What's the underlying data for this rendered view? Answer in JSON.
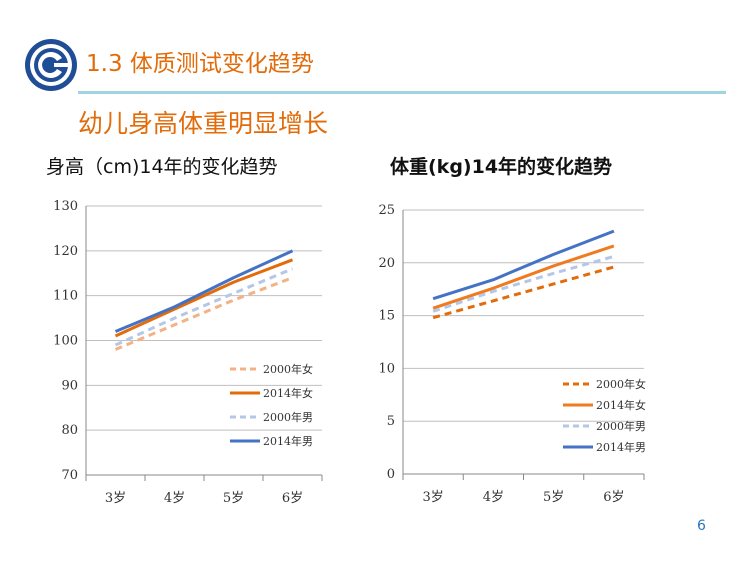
{
  "slide": {
    "title": "1.3 体质测试变化趋势",
    "subtitle": "幼儿身高体重明显增长",
    "page_number": "6",
    "accent_color": "#e26b0a",
    "rule_color": "#9fd4e0"
  },
  "chart_data": [
    {
      "type": "line",
      "title": "身高（cm)14年的变化趋势",
      "categories": [
        "3岁",
        "4岁",
        "5岁",
        "6岁"
      ],
      "ylim": [
        70,
        130
      ],
      "yticks": [
        "70",
        "80",
        "90",
        "100",
        "110",
        "120",
        "130"
      ],
      "grid": true,
      "legend_position": "bottom-right",
      "series": [
        {
          "name": "2000年女",
          "values": [
            98,
            103.5,
            109,
            114
          ],
          "color": "#f4b183",
          "style": "dashed"
        },
        {
          "name": "2014年女",
          "values": [
            101,
            107,
            113,
            118
          ],
          "color": "#e26b0a",
          "style": "solid"
        },
        {
          "name": "2000年男",
          "values": [
            99,
            105,
            110.5,
            116
          ],
          "color": "#b4c7e7",
          "style": "dashed"
        },
        {
          "name": "2014年男",
          "values": [
            102,
            107.5,
            114,
            120
          ],
          "color": "#4472c4",
          "style": "solid"
        }
      ]
    },
    {
      "type": "line",
      "title": "体重(kg)14年的变化趋势",
      "categories": [
        "3岁",
        "4岁",
        "5岁",
        "6岁"
      ],
      "ylim": [
        0,
        25
      ],
      "yticks": [
        "0",
        "5",
        "10",
        "15",
        "20",
        "25"
      ],
      "grid": true,
      "legend_position": "bottom-right",
      "series": [
        {
          "name": "2000年女",
          "values": [
            14.8,
            16.4,
            18.0,
            19.6
          ],
          "color": "#e26b0a",
          "style": "dashed"
        },
        {
          "name": "2014年女",
          "values": [
            15.7,
            17.6,
            19.7,
            21.6
          ],
          "color": "#f07b1e",
          "style": "solid"
        },
        {
          "name": "2000年男",
          "values": [
            15.4,
            17.3,
            19.0,
            20.6
          ],
          "color": "#b4c7e7",
          "style": "dashed"
        },
        {
          "name": "2014年男",
          "values": [
            16.6,
            18.4,
            20.8,
            23.0
          ],
          "color": "#4472c4",
          "style": "solid"
        }
      ]
    }
  ]
}
